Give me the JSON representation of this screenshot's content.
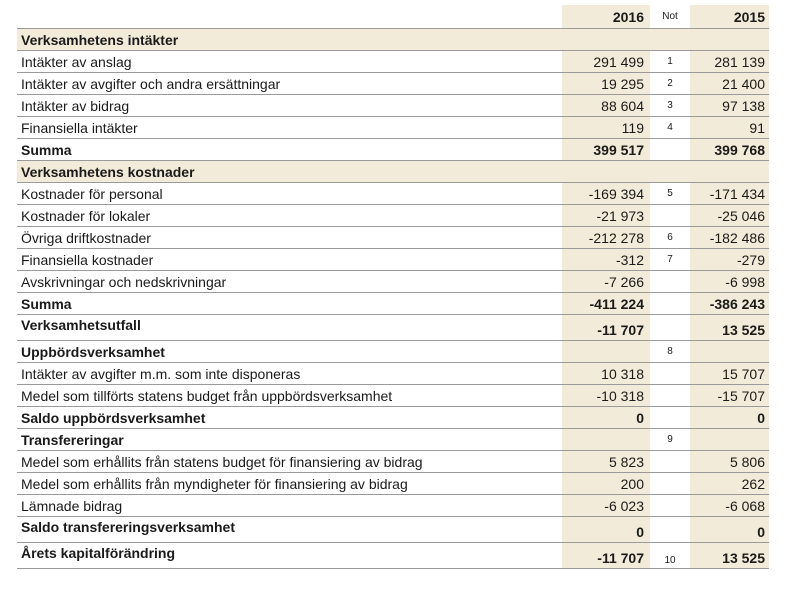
{
  "columns": {
    "year_current": "2016",
    "note": "Not",
    "year_previous": "2015"
  },
  "rows": [
    {
      "label": "Verksamhetens intäkter",
      "v2016": "",
      "note": "",
      "v2015": "",
      "style": "section"
    },
    {
      "label": "Intäkter av anslag",
      "v2016": "291 499",
      "note": "1",
      "v2015": "281 139",
      "style": "normal"
    },
    {
      "label": "Intäkter av avgifter och andra ersättningar",
      "v2016": "19 295",
      "note": "2",
      "v2015": "21 400",
      "style": "normal"
    },
    {
      "label": "Intäkter av bidrag",
      "v2016": "88 604",
      "note": "3",
      "v2015": "97 138",
      "style": "normal"
    },
    {
      "label": "Finansiella intäkter",
      "v2016": "119",
      "note": "4",
      "v2015": "91",
      "style": "normal"
    },
    {
      "label": "Summa",
      "v2016": "399 517",
      "note": "",
      "v2015": "399 768",
      "style": "total"
    },
    {
      "label": "Verksamhetens kostnader",
      "v2016": "",
      "note": "",
      "v2015": "",
      "style": "section"
    },
    {
      "label": "Kostnader för personal",
      "v2016": "-169 394",
      "note": "5",
      "v2015": "-171 434",
      "style": "normal"
    },
    {
      "label": "Kostnader för lokaler",
      "v2016": "-21 973",
      "note": "",
      "v2015": "-25 046",
      "style": "normal"
    },
    {
      "label": "Övriga driftkostnader",
      "v2016": "-212 278",
      "note": "6",
      "v2015": "-182 486",
      "style": "normal"
    },
    {
      "label": "Finansiella kostnader",
      "v2016": "-312",
      "note": "7",
      "v2015": "-279",
      "style": "normal"
    },
    {
      "label": "Avskrivningar och nedskrivningar",
      "v2016": "-7 266",
      "note": "",
      "v2015": "-6 998",
      "style": "normal"
    },
    {
      "label": "Summa",
      "v2016": "-411 224",
      "note": "",
      "v2015": "-386 243",
      "style": "total"
    },
    {
      "label": "Verksamhetsutfall",
      "v2016": "-11 707",
      "note": "",
      "v2015": "13 525",
      "style": "result"
    },
    {
      "label": "Uppbördsverksamhet",
      "v2016": "",
      "note": "8",
      "v2015": "",
      "style": "subheader"
    },
    {
      "label": "Intäkter av avgifter m.m. som inte disponeras",
      "v2016": "10 318",
      "note": "",
      "v2015": "15 707",
      "style": "normal"
    },
    {
      "label": "Medel som tillförts statens budget från uppbördsverksamhet",
      "v2016": "-10 318",
      "note": "",
      "v2015": "-15 707",
      "style": "normal"
    },
    {
      "label": "Saldo uppbördsverksamhet",
      "v2016": "0",
      "note": "",
      "v2015": "0",
      "style": "total"
    },
    {
      "label": "Transfereringar",
      "v2016": "",
      "note": "9",
      "v2015": "",
      "style": "subheader"
    },
    {
      "label": "Medel som erhållits från statens budget för finansiering av bidrag",
      "v2016": "5 823",
      "note": "",
      "v2015": "5 806",
      "style": "normal"
    },
    {
      "label": "Medel som erhållits från myndigheter för finansiering av bidrag",
      "v2016": "200",
      "note": "",
      "v2015": "262",
      "style": "normal"
    },
    {
      "label": "Lämnade bidrag",
      "v2016": "-6 023",
      "note": "",
      "v2015": "-6 068",
      "style": "normal"
    },
    {
      "label": "Saldo transfereringsverksamhet",
      "v2016": "0",
      "note": "",
      "v2015": "0",
      "style": "result"
    },
    {
      "label": "Årets kapitalförändring",
      "v2016": "-11 707",
      "note": "10",
      "v2015": "13 525",
      "style": "result"
    }
  ]
}
